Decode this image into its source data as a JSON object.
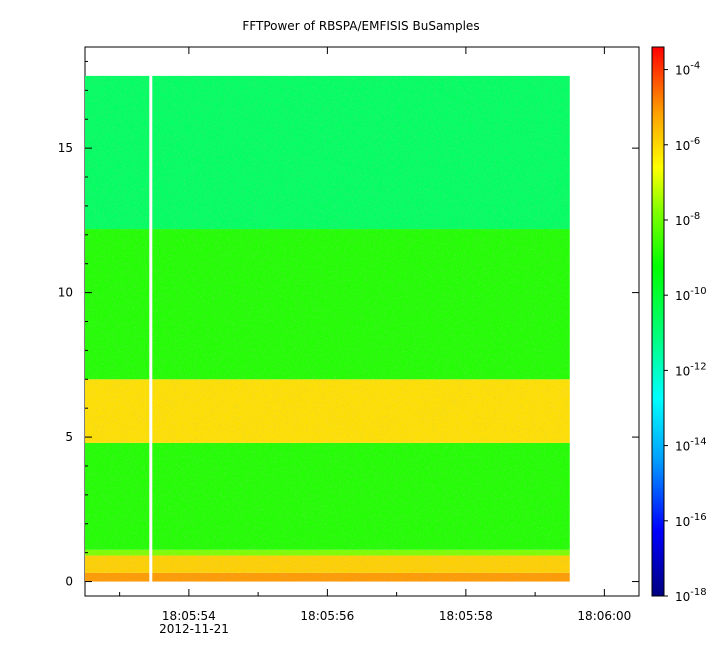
{
  "chart_data": {
    "type": "heatmap",
    "title": "FFTPower of RBSPA/EMFISIS  BuSamples",
    "xlabel": "",
    "ylabel": "",
    "x_range": [
      "18:05:52.5",
      "18:06:00.5"
    ],
    "x_ticks": [
      "18:05:54",
      "18:05:56",
      "18:05:58",
      "18:06:00"
    ],
    "x_minor_ticks": [
      "18:05:53",
      "18:05:55",
      "18:05:57",
      "18:05:59"
    ],
    "x_date_label": "2012-11-21",
    "data_x_range": [
      "18:05:52.5",
      "18:05:59.5"
    ],
    "gap_at": "18:05:53.45",
    "y_range": [
      -0.5,
      18.5
    ],
    "y_ticks": [
      0,
      5,
      10,
      15
    ],
    "y_data_range": [
      0,
      17.5
    ],
    "colorbar": {
      "scale": "log",
      "range_exponents": [
        -18,
        -3.4
      ],
      "tick_base": "10",
      "tick_exponents": [
        "-18",
        "-16",
        "-14",
        "-12",
        "-10",
        "-8",
        "-6",
        "-4"
      ],
      "colormap": [
        "#00007f",
        "#0000ff",
        "#00a0ff",
        "#00ffff",
        "#00ff80",
        "#00ff00",
        "#80ff00",
        "#ffff00",
        "#ffa000",
        "#ff0000"
      ]
    },
    "bands": [
      {
        "y": [
          0.0,
          0.3
        ],
        "color": "#ff9a00"
      },
      {
        "y": [
          0.3,
          0.9
        ],
        "color": "#ffd000"
      },
      {
        "y": [
          0.9,
          1.1
        ],
        "color": "#7dff00"
      },
      {
        "y": [
          1.1,
          4.8
        ],
        "color": "#20ff00"
      },
      {
        "y": [
          4.8,
          7.0
        ],
        "color": "#ffe000"
      },
      {
        "y": [
          7.0,
          12.2
        ],
        "color": "#20ff00"
      },
      {
        "y": [
          12.2,
          17.5
        ],
        "color": "#00ff60"
      }
    ]
  }
}
